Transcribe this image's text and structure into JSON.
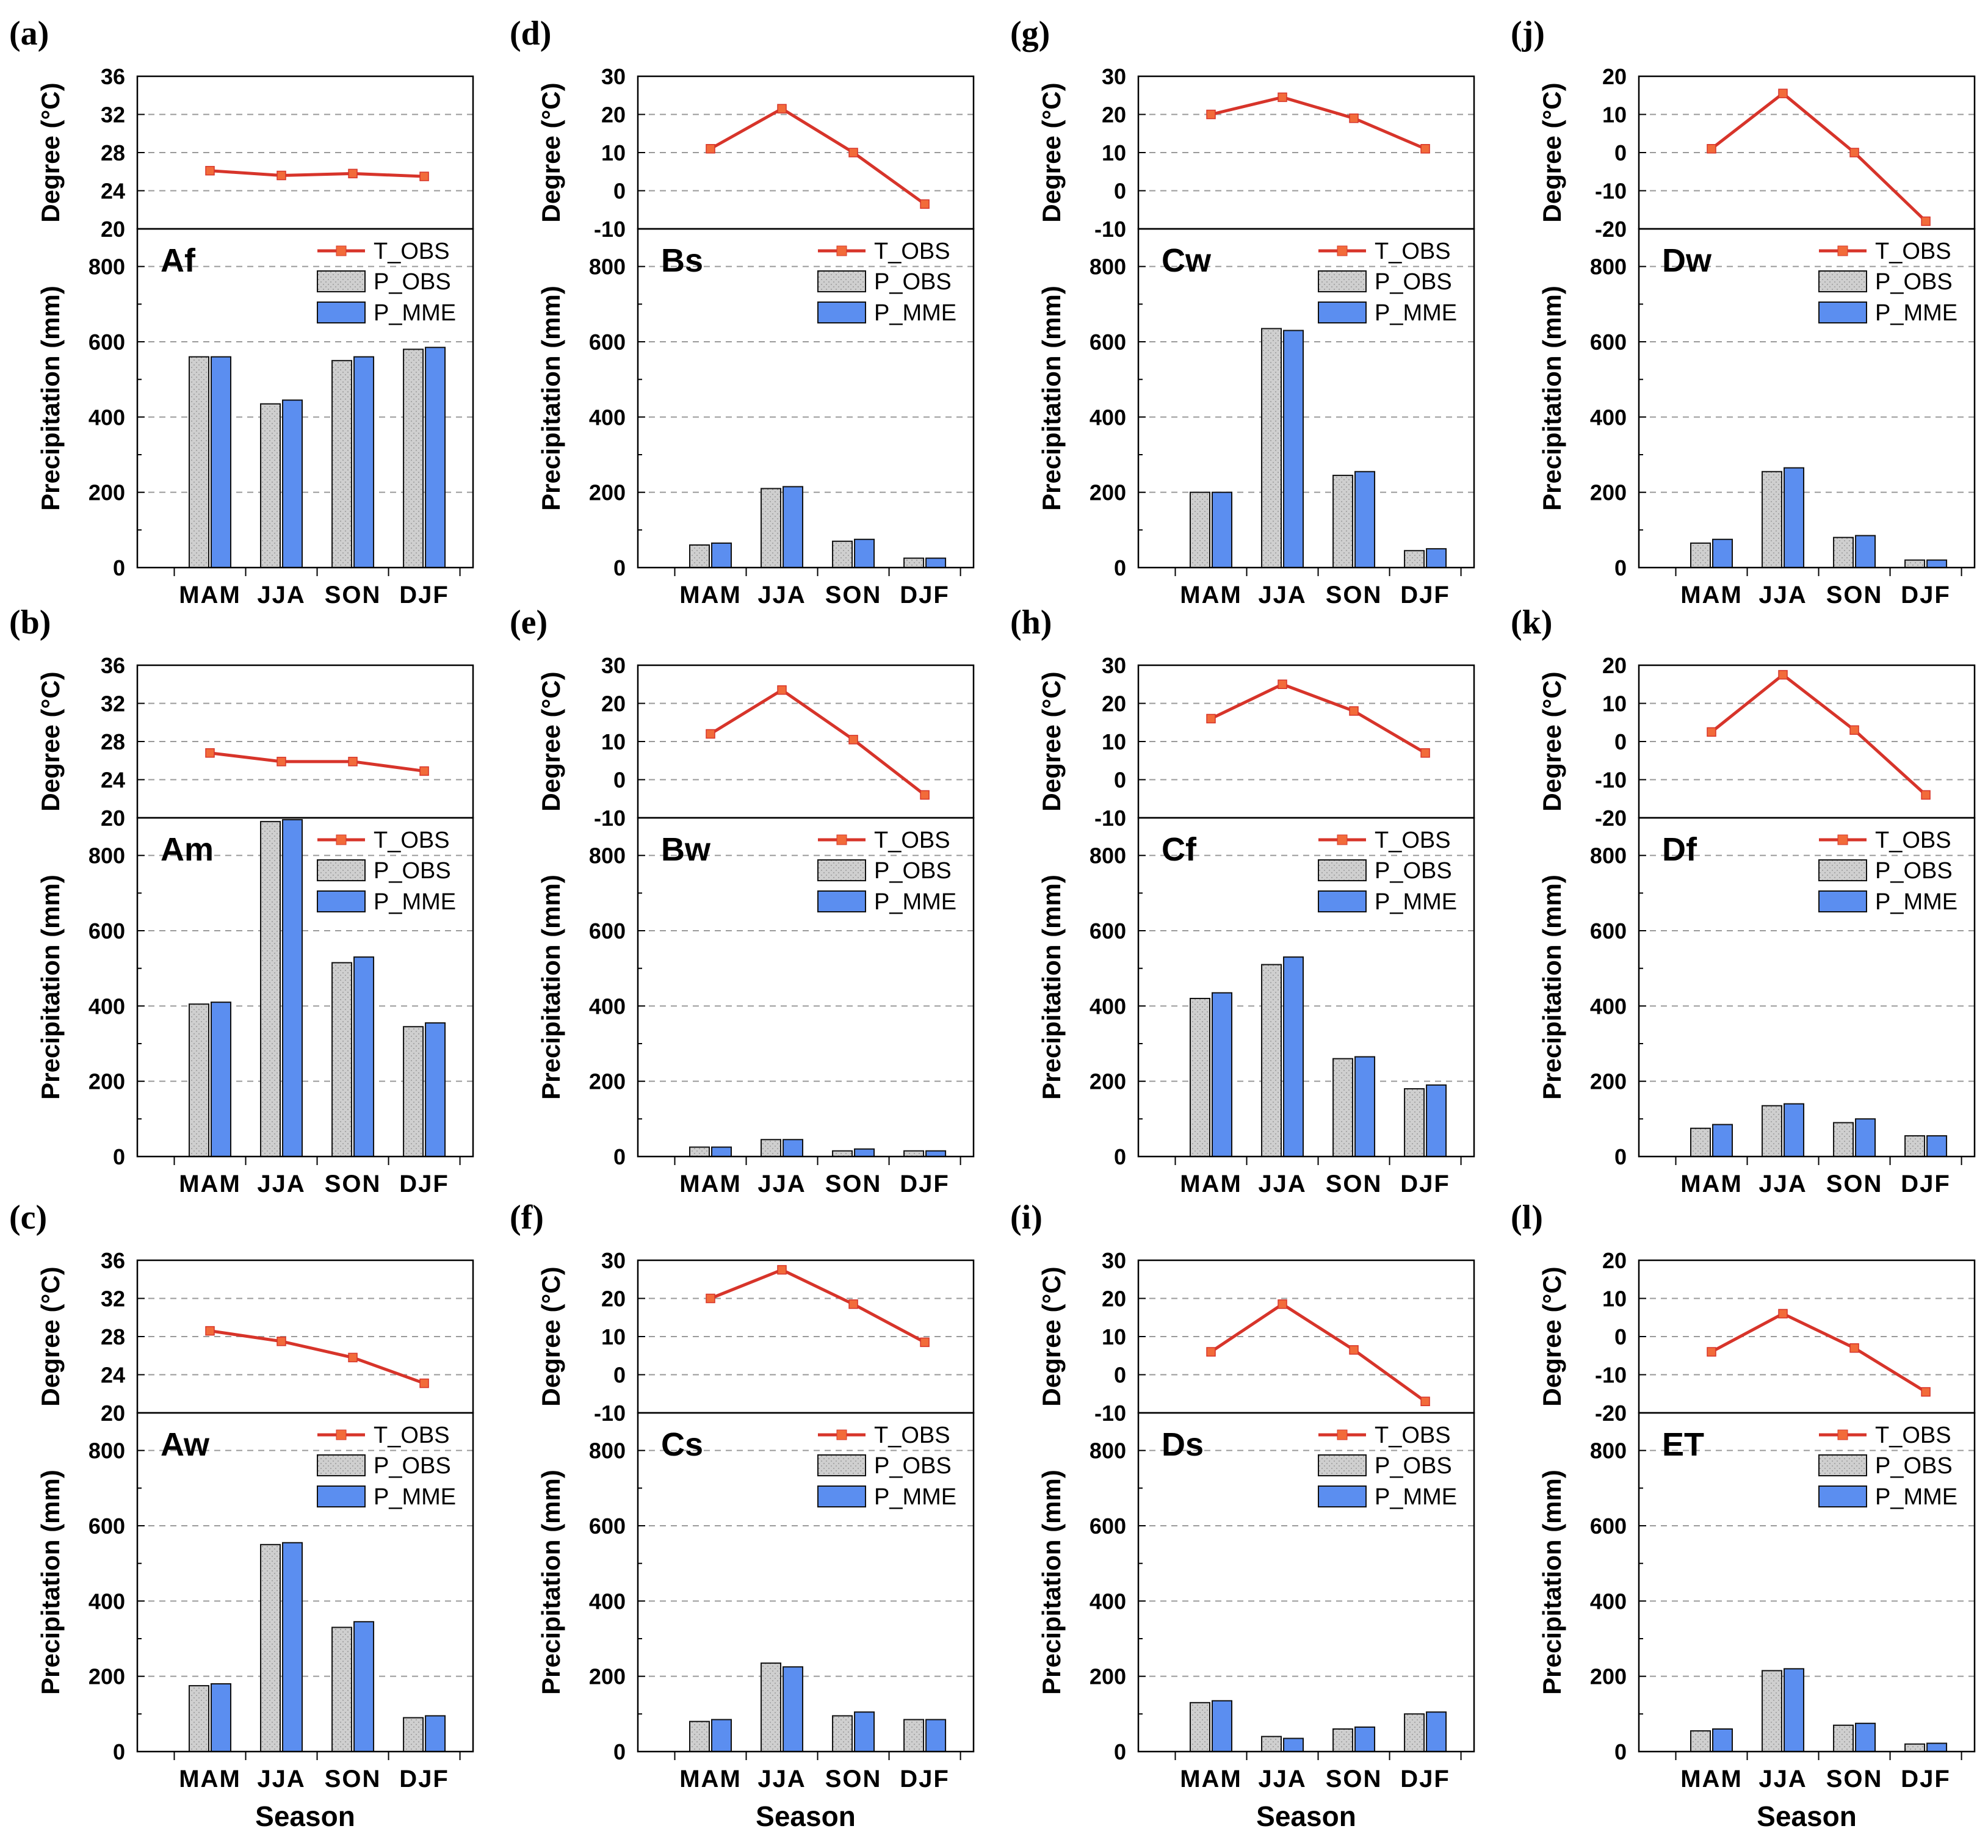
{
  "colors": {
    "temperature": "#d7342a",
    "temperature_marker": "#f26b3a",
    "p_obs_fill": "#cfcfcf",
    "p_mme_fill": "#5b8ef0",
    "grid": "#9a9a9a"
  },
  "legend": {
    "t_obs": "T_OBS",
    "p_obs": "P_OBS",
    "p_mme": "P_MME"
  },
  "axis_titles": {
    "temperature": "Degree (°C)",
    "precipitation": "Precipitation (mm)",
    "x": "Season"
  },
  "chart_data": [
    {
      "type": "bar+line",
      "panel": "(a)",
      "climate": "Af",
      "categories": [
        "MAM",
        "JJA",
        "SON",
        "DJF"
      ],
      "temperature": {
        "name": "T_OBS",
        "values": [
          26.1,
          25.6,
          25.8,
          25.5
        ],
        "ylim": [
          20,
          36
        ],
        "ticks": [
          "36",
          "32",
          "28",
          "24",
          "20"
        ]
      },
      "series": [
        {
          "name": "P_OBS",
          "values": [
            560,
            435,
            550,
            580
          ]
        },
        {
          "name": "P_MME",
          "values": [
            560,
            445,
            560,
            585
          ]
        }
      ],
      "precip": {
        "ylim": [
          0,
          900
        ],
        "ticks": [
          "800",
          "600",
          "400",
          "200",
          "0"
        ]
      },
      "xlabel": ""
    },
    {
      "type": "bar+line",
      "panel": "(b)",
      "climate": "Am",
      "categories": [
        "MAM",
        "JJA",
        "SON",
        "DJF"
      ],
      "temperature": {
        "name": "T_OBS",
        "values": [
          26.8,
          25.9,
          25.9,
          24.9
        ],
        "ylim": [
          20,
          36
        ],
        "ticks": [
          "36",
          "32",
          "28",
          "24",
          "20"
        ]
      },
      "series": [
        {
          "name": "P_OBS",
          "values": [
            405,
            890,
            515,
            345
          ]
        },
        {
          "name": "P_MME",
          "values": [
            410,
            895,
            530,
            355
          ]
        }
      ],
      "precip": {
        "ylim": [
          0,
          900
        ],
        "ticks": [
          "800",
          "600",
          "400",
          "200",
          "0"
        ]
      },
      "xlabel": ""
    },
    {
      "type": "bar+line",
      "panel": "(c)",
      "climate": "Aw",
      "categories": [
        "MAM",
        "JJA",
        "SON",
        "DJF"
      ],
      "temperature": {
        "name": "T_OBS",
        "values": [
          28.6,
          27.5,
          25.8,
          23.1
        ],
        "ylim": [
          20,
          36
        ],
        "ticks": [
          "36",
          "32",
          "28",
          "24",
          "20"
        ]
      },
      "series": [
        {
          "name": "P_OBS",
          "values": [
            175,
            550,
            330,
            90
          ]
        },
        {
          "name": "P_MME",
          "values": [
            180,
            555,
            345,
            95
          ]
        }
      ],
      "precip": {
        "ylim": [
          0,
          900
        ],
        "ticks": [
          "800",
          "600",
          "400",
          "200",
          "0"
        ]
      },
      "xlabel": "Season"
    },
    {
      "type": "bar+line",
      "panel": "(d)",
      "climate": "Bs",
      "categories": [
        "MAM",
        "JJA",
        "SON",
        "DJF"
      ],
      "temperature": {
        "name": "T_OBS",
        "values": [
          11,
          21.5,
          10,
          -3.5
        ],
        "ylim": [
          -10,
          30
        ],
        "ticks": [
          "30",
          "20",
          "10",
          "0",
          "-10"
        ]
      },
      "series": [
        {
          "name": "P_OBS",
          "values": [
            60,
            210,
            70,
            25
          ]
        },
        {
          "name": "P_MME",
          "values": [
            65,
            215,
            75,
            25
          ]
        }
      ],
      "precip": {
        "ylim": [
          0,
          900
        ],
        "ticks": [
          "800",
          "600",
          "400",
          "200",
          "0"
        ]
      },
      "xlabel": ""
    },
    {
      "type": "bar+line",
      "panel": "(e)",
      "climate": "Bw",
      "categories": [
        "MAM",
        "JJA",
        "SON",
        "DJF"
      ],
      "temperature": {
        "name": "T_OBS",
        "values": [
          12,
          23.5,
          10.5,
          -4
        ],
        "ylim": [
          -10,
          30
        ],
        "ticks": [
          "30",
          "20",
          "10",
          "0",
          "-10"
        ]
      },
      "series": [
        {
          "name": "P_OBS",
          "values": [
            25,
            45,
            15,
            15
          ]
        },
        {
          "name": "P_MME",
          "values": [
            25,
            45,
            20,
            15
          ]
        }
      ],
      "precip": {
        "ylim": [
          0,
          900
        ],
        "ticks": [
          "800",
          "600",
          "400",
          "200",
          "0"
        ]
      },
      "xlabel": ""
    },
    {
      "type": "bar+line",
      "panel": "(f)",
      "climate": "Cs",
      "categories": [
        "MAM",
        "JJA",
        "SON",
        "DJF"
      ],
      "temperature": {
        "name": "T_OBS",
        "values": [
          20,
          27.5,
          18.5,
          8.5
        ],
        "ylim": [
          -10,
          30
        ],
        "ticks": [
          "30",
          "20",
          "10",
          "0",
          "-10"
        ]
      },
      "series": [
        {
          "name": "P_OBS",
          "values": [
            80,
            235,
            95,
            85
          ]
        },
        {
          "name": "P_MME",
          "values": [
            85,
            225,
            105,
            85
          ]
        }
      ],
      "precip": {
        "ylim": [
          0,
          900
        ],
        "ticks": [
          "800",
          "600",
          "400",
          "200",
          "0"
        ]
      },
      "xlabel": "Season"
    },
    {
      "type": "bar+line",
      "panel": "(g)",
      "climate": "Cw",
      "categories": [
        "MAM",
        "JJA",
        "SON",
        "DJF"
      ],
      "temperature": {
        "name": "T_OBS",
        "values": [
          20,
          24.5,
          19,
          11
        ],
        "ylim": [
          -10,
          30
        ],
        "ticks": [
          "30",
          "20",
          "10",
          "0",
          "-10"
        ]
      },
      "series": [
        {
          "name": "P_OBS",
          "values": [
            200,
            635,
            245,
            45
          ]
        },
        {
          "name": "P_MME",
          "values": [
            200,
            630,
            255,
            50
          ]
        }
      ],
      "precip": {
        "ylim": [
          0,
          900
        ],
        "ticks": [
          "800",
          "600",
          "400",
          "200",
          "0"
        ]
      },
      "xlabel": ""
    },
    {
      "type": "bar+line",
      "panel": "(h)",
      "climate": "Cf",
      "categories": [
        "MAM",
        "JJA",
        "SON",
        "DJF"
      ],
      "temperature": {
        "name": "T_OBS",
        "values": [
          16,
          25,
          18,
          7
        ],
        "ylim": [
          -10,
          30
        ],
        "ticks": [
          "30",
          "20",
          "10",
          "0",
          "-10"
        ]
      },
      "series": [
        {
          "name": "P_OBS",
          "values": [
            420,
            510,
            260,
            180
          ]
        },
        {
          "name": "P_MME",
          "values": [
            435,
            530,
            265,
            190
          ]
        }
      ],
      "precip": {
        "ylim": [
          0,
          900
        ],
        "ticks": [
          "800",
          "600",
          "400",
          "200",
          "0"
        ]
      },
      "xlabel": ""
    },
    {
      "type": "bar+line",
      "panel": "(i)",
      "climate": "Ds",
      "categories": [
        "MAM",
        "JJA",
        "SON",
        "DJF"
      ],
      "temperature": {
        "name": "T_OBS",
        "values": [
          6,
          18.5,
          6.5,
          -7
        ],
        "ylim": [
          -10,
          30
        ],
        "ticks": [
          "30",
          "20",
          "10",
          "0",
          "-10"
        ]
      },
      "series": [
        {
          "name": "P_OBS",
          "values": [
            130,
            40,
            60,
            100
          ]
        },
        {
          "name": "P_MME",
          "values": [
            135,
            35,
            65,
            105
          ]
        }
      ],
      "precip": {
        "ylim": [
          0,
          900
        ],
        "ticks": [
          "800",
          "600",
          "400",
          "200",
          "0"
        ]
      },
      "xlabel": "Season"
    },
    {
      "type": "bar+line",
      "panel": "(j)",
      "climate": "Dw",
      "categories": [
        "MAM",
        "JJA",
        "SON",
        "DJF"
      ],
      "temperature": {
        "name": "T_OBS",
        "values": [
          1,
          15.5,
          0,
          -18
        ],
        "ylim": [
          -20,
          20
        ],
        "ticks": [
          "20",
          "10",
          "0",
          "-10",
          "-20"
        ]
      },
      "series": [
        {
          "name": "P_OBS",
          "values": [
            65,
            255,
            80,
            20
          ]
        },
        {
          "name": "P_MME",
          "values": [
            75,
            265,
            85,
            20
          ]
        }
      ],
      "precip": {
        "ylim": [
          0,
          900
        ],
        "ticks": [
          "800",
          "600",
          "400",
          "200",
          "0"
        ]
      },
      "xlabel": ""
    },
    {
      "type": "bar+line",
      "panel": "(k)",
      "climate": "Df",
      "categories": [
        "MAM",
        "JJA",
        "SON",
        "DJF"
      ],
      "temperature": {
        "name": "T_OBS",
        "values": [
          2.5,
          17.5,
          3,
          -14
        ],
        "ylim": [
          -20,
          20
        ],
        "ticks": [
          "20",
          "10",
          "0",
          "-10",
          "-20"
        ]
      },
      "series": [
        {
          "name": "P_OBS",
          "values": [
            75,
            135,
            90,
            55
          ]
        },
        {
          "name": "P_MME",
          "values": [
            85,
            140,
            100,
            55
          ]
        }
      ],
      "precip": {
        "ylim": [
          0,
          900
        ],
        "ticks": [
          "800",
          "600",
          "400",
          "200",
          "0"
        ]
      },
      "xlabel": ""
    },
    {
      "type": "bar+line",
      "panel": "(l)",
      "climate": "ET",
      "categories": [
        "MAM",
        "JJA",
        "SON",
        "DJF"
      ],
      "temperature": {
        "name": "T_OBS",
        "values": [
          -4,
          6,
          -3,
          -14.5
        ],
        "ylim": [
          -20,
          20
        ],
        "ticks": [
          "20",
          "10",
          "0",
          "-10",
          "-20"
        ]
      },
      "series": [
        {
          "name": "P_OBS",
          "values": [
            55,
            215,
            70,
            20
          ]
        },
        {
          "name": "P_MME",
          "values": [
            60,
            220,
            75,
            22
          ]
        }
      ],
      "precip": {
        "ylim": [
          0,
          900
        ],
        "ticks": [
          "800",
          "600",
          "400",
          "200",
          "0"
        ]
      },
      "xlabel": "Season"
    }
  ]
}
